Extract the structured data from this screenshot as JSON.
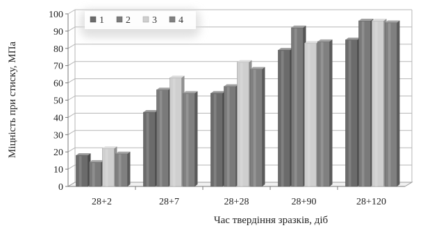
{
  "chart_data": {
    "type": "bar",
    "style": "3d",
    "title": "",
    "xlabel": "Час твердіння зразків, діб",
    "ylabel": "Міцність при стиску, МПа",
    "ylim": [
      0,
      100
    ],
    "yticks": [
      0,
      10,
      20,
      30,
      40,
      50,
      60,
      70,
      80,
      90,
      100
    ],
    "grid": true,
    "legend_position": "top-left",
    "categories": [
      "28+2",
      "28+7",
      "28+28",
      "28+90",
      "28+120"
    ],
    "series": [
      {
        "name": "1",
        "color": "#6b6b6b",
        "values": [
          18,
          43,
          54,
          79,
          85
        ]
      },
      {
        "name": "2",
        "color": "#7a7a7a",
        "values": [
          14,
          56,
          58,
          92,
          96
        ]
      },
      {
        "name": "3",
        "color": "#cfcfcf",
        "values": [
          22,
          63,
          72,
          83,
          96
        ]
      },
      {
        "name": "4",
        "color": "#808080",
        "values": [
          19,
          54,
          68,
          84,
          95
        ]
      }
    ]
  }
}
